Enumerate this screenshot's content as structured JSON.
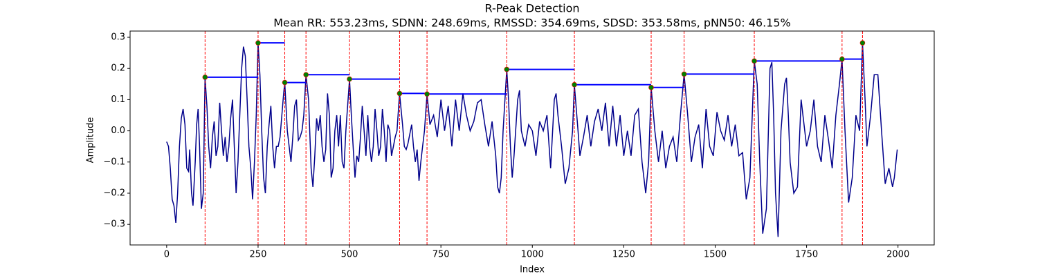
{
  "chart_data": {
    "type": "line",
    "title": "R-Peak Detection",
    "subtitle": "Mean RR: 553.23ms, SDNN: 248.69ms, RMSSD: 354.69ms, SDSD: 353.58ms, pNN50: 46.15%",
    "x_label": "Index",
    "y_label": "Amplitude",
    "xlim": [
      -100,
      2099
    ],
    "ylim": [
      -0.366,
      0.32
    ],
    "xticks": [
      0,
      250,
      500,
      750,
      1000,
      1250,
      1500,
      1750,
      2000
    ],
    "yticks": [
      {
        "value": -0.3,
        "label": "−0.3"
      },
      {
        "value": -0.2,
        "label": "−0.2"
      },
      {
        "value": -0.1,
        "label": "−0.1"
      },
      {
        "value": 0,
        "label": "0.0"
      },
      {
        "value": 0.1,
        "label": "0.1"
      },
      {
        "value": 0.2,
        "label": "0.2"
      },
      {
        "value": 0.3,
        "label": "0.3"
      }
    ],
    "series": [
      {
        "color": "#00008b",
        "x": [
          0,
          5,
          10,
          15,
          20,
          25,
          30,
          35,
          40,
          45,
          50,
          55,
          60,
          63,
          68,
          72,
          78,
          82,
          86,
          90,
          95,
          100,
          105,
          110,
          115,
          120,
          125,
          130,
          135,
          140,
          145,
          150,
          155,
          160,
          165,
          170,
          175,
          180,
          185,
          190,
          195,
          200,
          205,
          210,
          215,
          220,
          225,
          230,
          235,
          240,
          245,
          250,
          255,
          260,
          265,
          270,
          275,
          280,
          285,
          290,
          295,
          300,
          305,
          310,
          315,
          320,
          323,
          330,
          340,
          345,
          350,
          355,
          360,
          365,
          370,
          375,
          381,
          388,
          395,
          400,
          405,
          410,
          415,
          420,
          425,
          430,
          435,
          440,
          445,
          450,
          455,
          460,
          465,
          470,
          475,
          480,
          485,
          490,
          500,
          505,
          510,
          515,
          520,
          525,
          530,
          535,
          540,
          545,
          550,
          555,
          560,
          565,
          570,
          575,
          580,
          585,
          590,
          595,
          600,
          605,
          610,
          615,
          620,
          625,
          630,
          637,
          645,
          650,
          655,
          660,
          670,
          675,
          680,
          685,
          690,
          695,
          700,
          705,
          712,
          720,
          730,
          740,
          750,
          755,
          760,
          770,
          780,
          790,
          800,
          810,
          820,
          830,
          840,
          850,
          860,
          870,
          880,
          890,
          900,
          905,
          910,
          915,
          920,
          930,
          935,
          940,
          945,
          950,
          960,
          965,
          970,
          980,
          990,
          1000,
          1010,
          1020,
          1030,
          1040,
          1050,
          1060,
          1065,
          1070,
          1080,
          1090,
          1100,
          1110,
          1115,
          1125,
          1130,
          1140,
          1150,
          1160,
          1170,
          1180,
          1190,
          1200,
          1210,
          1220,
          1230,
          1240,
          1250,
          1260,
          1270,
          1280,
          1290,
          1300,
          1310,
          1318,
          1325,
          1335,
          1345,
          1355,
          1365,
          1375,
          1385,
          1395,
          1405,
          1415,
          1425,
          1435,
          1445,
          1455,
          1465,
          1475,
          1485,
          1495,
          1505,
          1515,
          1525,
          1535,
          1545,
          1555,
          1565,
          1575,
          1585,
          1595,
          1607,
          1615,
          1622,
          1630,
          1640,
          1650,
          1655,
          1660,
          1665,
          1672,
          1680,
          1690,
          1695,
          1700,
          1705,
          1715,
          1725,
          1735,
          1740,
          1750,
          1760,
          1770,
          1780,
          1790,
          1800,
          1810,
          1820,
          1830,
          1840,
          1847,
          1855,
          1865,
          1875,
          1885,
          1895,
          1903,
          1910,
          1915,
          1925,
          1935,
          1945,
          1955,
          1965,
          1975,
          1985,
          1990,
          1998
        ],
        "values": [
          -0.035,
          -0.05,
          -0.12,
          -0.22,
          -0.24,
          -0.295,
          -0.2,
          -0.05,
          0.04,
          0.07,
          0.02,
          -0.12,
          -0.13,
          -0.06,
          -0.2,
          -0.24,
          -0.1,
          0.02,
          0.07,
          -0.05,
          -0.25,
          -0.2,
          0.172,
          0.08,
          -0.05,
          -0.12,
          -0.02,
          0.03,
          -0.08,
          -0.05,
          0.09,
          0.0,
          -0.08,
          -0.02,
          -0.1,
          -0.05,
          0.04,
          0.1,
          -0.05,
          -0.2,
          -0.1,
          0.05,
          0.2,
          0.27,
          0.24,
          0.1,
          -0.05,
          -0.12,
          -0.22,
          -0.1,
          0.05,
          0.282,
          0.18,
          0.0,
          -0.15,
          -0.2,
          -0.05,
          0.02,
          0.08,
          -0.05,
          -0.12,
          -0.05,
          -0.05,
          -0.02,
          0.05,
          0.12,
          0.155,
          0.0,
          -0.1,
          -0.02,
          0.08,
          0.1,
          -0.03,
          -0.02,
          0.0,
          0.05,
          0.18,
          0.1,
          -0.12,
          -0.18,
          -0.08,
          0.04,
          0.0,
          0.05,
          -0.05,
          -0.1,
          -0.06,
          0.12,
          0.05,
          -0.15,
          -0.12,
          0.0,
          0.05,
          -0.05,
          0.05,
          -0.1,
          -0.12,
          0.0,
          0.166,
          0.05,
          -0.05,
          -0.15,
          -0.08,
          -0.1,
          -0.02,
          0.08,
          0.0,
          -0.08,
          0.05,
          -0.05,
          -0.1,
          -0.05,
          0.07,
          0.0,
          -0.08,
          -0.05,
          0.07,
          0.0,
          -0.1,
          0.02,
          0.0,
          -0.08,
          -0.05,
          -0.02,
          0.0,
          0.12,
          0.02,
          -0.05,
          -0.06,
          -0.04,
          0.02,
          -0.05,
          -0.1,
          -0.06,
          -0.16,
          -0.1,
          -0.05,
          0.0,
          0.118,
          0.02,
          0.05,
          -0.02,
          0.1,
          0.05,
          0.0,
          0.08,
          -0.05,
          0.1,
          0.0,
          0.12,
          0.05,
          0.0,
          0.03,
          0.09,
          0.1,
          0.02,
          -0.05,
          0.03,
          -0.08,
          -0.18,
          -0.2,
          -0.15,
          0.0,
          0.197,
          0.1,
          -0.05,
          -0.15,
          -0.08,
          0.1,
          0.13,
          0.0,
          -0.05,
          0.02,
          0.0,
          -0.08,
          0.03,
          0.0,
          0.05,
          -0.12,
          0.1,
          0.12,
          0.05,
          -0.05,
          -0.17,
          -0.12,
          0.0,
          0.148,
          0.0,
          -0.08,
          -0.02,
          0.05,
          -0.05,
          0.03,
          0.07,
          0.0,
          0.09,
          -0.05,
          0.08,
          -0.05,
          0.05,
          -0.08,
          0.0,
          -0.08,
          0.05,
          0.07,
          -0.1,
          -0.2,
          -0.1,
          0.139,
          0.0,
          -0.1,
          0.0,
          -0.12,
          -0.05,
          -0.02,
          -0.1,
          0.05,
          0.182,
          0.05,
          -0.1,
          -0.02,
          0.02,
          -0.12,
          0.07,
          -0.05,
          -0.08,
          0.06,
          0.0,
          -0.03,
          0.05,
          -0.05,
          0.02,
          -0.08,
          -0.07,
          -0.22,
          -0.15,
          0.224,
          0.15,
          -0.1,
          -0.33,
          -0.25,
          0.2,
          0.22,
          0.05,
          -0.2,
          -0.34,
          0.0,
          0.15,
          0.17,
          0.05,
          -0.1,
          -0.2,
          -0.18,
          0.1,
          0.05,
          -0.05,
          0.0,
          0.1,
          -0.05,
          -0.1,
          0.05,
          -0.03,
          -0.12,
          0.05,
          0.15,
          0.23,
          0.0,
          -0.23,
          -0.15,
          0.05,
          0.0,
          0.282,
          0.1,
          -0.05,
          0.05,
          0.18,
          0.18,
          0.0,
          -0.17,
          -0.12,
          -0.18,
          -0.15,
          -0.06
        ]
      }
    ],
    "peaks": {
      "color": "#008000",
      "edge_color": "#ff0000",
      "line_color": "#ff0000",
      "rr_color": "#0000ff",
      "x": [
        105,
        250,
        323,
        381,
        500,
        637,
        712,
        930,
        1115,
        1325,
        1415,
        1607,
        1847,
        1903
      ],
      "values": [
        0.172,
        0.282,
        0.155,
        0.18,
        0.166,
        0.12,
        0.118,
        0.197,
        0.148,
        0.139,
        0.182,
        0.224,
        0.23,
        0.282
      ]
    }
  }
}
